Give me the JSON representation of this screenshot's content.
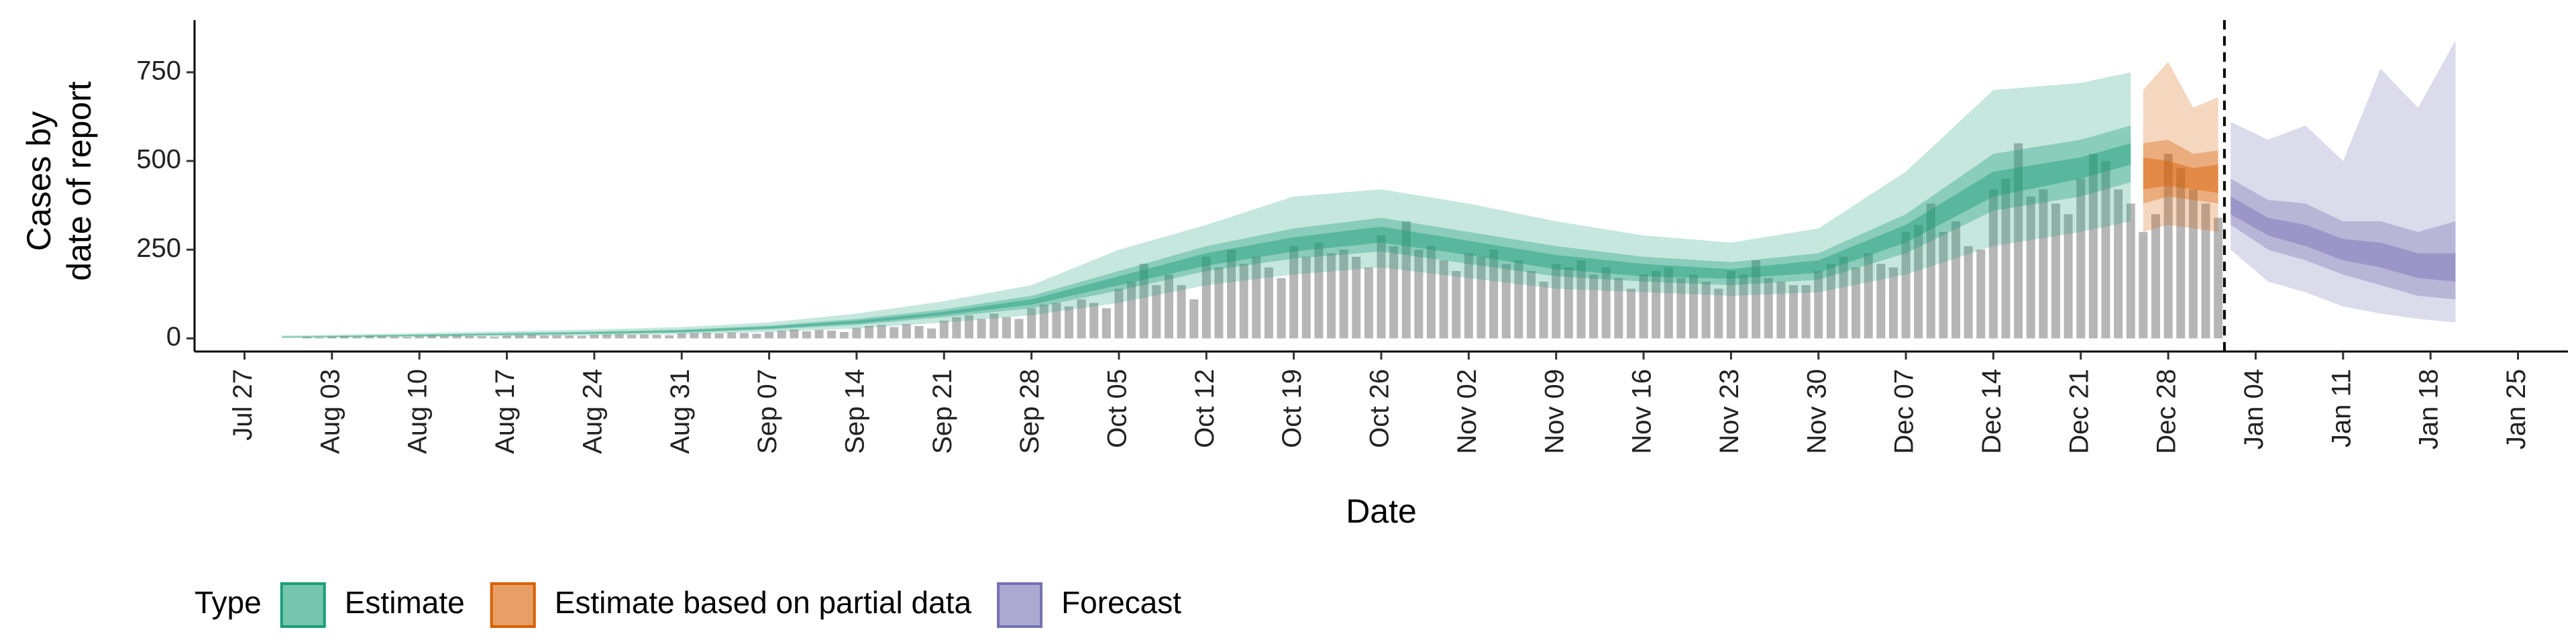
{
  "chart_data": {
    "type": "area",
    "x_label": "Date",
    "y_label": [
      "Cases by",
      "date of report"
    ],
    "legend_title": "Type",
    "xlim": [
      "Jul 23",
      "Jan 29"
    ],
    "xticks": [
      "Jul 27",
      "Aug 03",
      "Aug 10",
      "Aug 17",
      "Aug 24",
      "Aug 31",
      "Sep 07",
      "Sep 14",
      "Sep 21",
      "Sep 28",
      "Oct 05",
      "Oct 12",
      "Oct 19",
      "Oct 26",
      "Nov 02",
      "Nov 09",
      "Nov 16",
      "Nov 23",
      "Nov 30",
      "Dec 07",
      "Dec 14",
      "Dec 21",
      "Dec 28",
      "Jan 04",
      "Jan 11",
      "Jan 18",
      "Jan 25"
    ],
    "ylim": [
      -37,
      897
    ],
    "yticks": [
      0,
      250,
      500,
      750
    ],
    "bars": {
      "color": "#9e9e9e",
      "x": [
        "Aug 01",
        "Aug 02",
        "Aug 03",
        "Aug 04",
        "Aug 05",
        "Aug 06",
        "Aug 07",
        "Aug 08",
        "Aug 09",
        "Aug 10",
        "Aug 11",
        "Aug 12",
        "Aug 13",
        "Aug 14",
        "Aug 15",
        "Aug 16",
        "Aug 17",
        "Aug 18",
        "Aug 19",
        "Aug 20",
        "Aug 21",
        "Aug 22",
        "Aug 23",
        "Aug 24",
        "Aug 25",
        "Aug 26",
        "Aug 27",
        "Aug 28",
        "Aug 29",
        "Aug 30",
        "Aug 31",
        "Sep 01",
        "Sep 02",
        "Sep 03",
        "Sep 04",
        "Sep 05",
        "Sep 06",
        "Sep 07",
        "Sep 08",
        "Sep 09",
        "Sep 10",
        "Sep 11",
        "Sep 12",
        "Sep 13",
        "Sep 14",
        "Sep 15",
        "Sep 16",
        "Sep 17",
        "Sep 18",
        "Sep 19",
        "Sep 20",
        "Sep 21",
        "Sep 22",
        "Sep 23",
        "Sep 24",
        "Sep 25",
        "Sep 26",
        "Sep 27",
        "Sep 28",
        "Sep 29",
        "Sep 30",
        "Oct 01",
        "Oct 02",
        "Oct 03",
        "Oct 04",
        "Oct 05",
        "Oct 06",
        "Oct 07",
        "Oct 08",
        "Oct 09",
        "Oct 10",
        "Oct 11",
        "Oct 12",
        "Oct 13",
        "Oct 14",
        "Oct 15",
        "Oct 16",
        "Oct 17",
        "Oct 18",
        "Oct 19",
        "Oct 20",
        "Oct 21",
        "Oct 22",
        "Oct 23",
        "Oct 24",
        "Oct 25",
        "Oct 26",
        "Oct 27",
        "Oct 28",
        "Oct 29",
        "Oct 30",
        "Oct 31",
        "Nov 01",
        "Nov 02",
        "Nov 03",
        "Nov 04",
        "Nov 05",
        "Nov 06",
        "Nov 07",
        "Nov 08",
        "Nov 09",
        "Nov 10",
        "Nov 11",
        "Nov 12",
        "Nov 13",
        "Nov 14",
        "Nov 15",
        "Nov 16",
        "Nov 17",
        "Nov 18",
        "Nov 19",
        "Nov 20",
        "Nov 21",
        "Nov 22",
        "Nov 23",
        "Nov 24",
        "Nov 25",
        "Nov 26",
        "Nov 27",
        "Nov 28",
        "Nov 29",
        "Nov 30",
        "Dec 01",
        "Dec 02",
        "Dec 03",
        "Dec 04",
        "Dec 05",
        "Dec 06",
        "Dec 07",
        "Dec 08",
        "Dec 09",
        "Dec 10",
        "Dec 11",
        "Dec 12",
        "Dec 13",
        "Dec 14",
        "Dec 15",
        "Dec 16",
        "Dec 17",
        "Dec 18",
        "Dec 19",
        "Dec 20",
        "Dec 21",
        "Dec 22",
        "Dec 23",
        "Dec 24",
        "Dec 25",
        "Dec 26",
        "Dec 27",
        "Dec 28",
        "Dec 29",
        "Dec 30",
        "Dec 31",
        "Jan 01"
      ],
      "values": [
        4,
        3,
        5,
        6,
        5,
        7,
        6,
        5,
        4,
        6,
        8,
        7,
        9,
        7,
        6,
        5,
        8,
        9,
        10,
        8,
        9,
        8,
        7,
        10,
        11,
        12,
        10,
        11,
        10,
        9,
        14,
        15,
        16,
        14,
        17,
        15,
        13,
        18,
        22,
        25,
        20,
        24,
        22,
        18,
        30,
        35,
        38,
        32,
        40,
        35,
        28,
        50,
        60,
        65,
        55,
        70,
        60,
        55,
        85,
        95,
        100,
        90,
        110,
        100,
        85,
        140,
        160,
        210,
        150,
        180,
        150,
        110,
        230,
        200,
        250,
        210,
        230,
        200,
        170,
        260,
        230,
        270,
        240,
        250,
        230,
        200,
        290,
        260,
        330,
        250,
        260,
        220,
        190,
        240,
        230,
        250,
        210,
        220,
        190,
        160,
        210,
        200,
        220,
        180,
        200,
        170,
        140,
        180,
        190,
        200,
        170,
        180,
        160,
        140,
        190,
        180,
        220,
        170,
        160,
        150,
        150,
        190,
        210,
        230,
        200,
        240,
        210,
        200,
        300,
        320,
        380,
        300,
        330,
        260,
        250,
        420,
        450,
        550,
        400,
        420,
        380,
        350,
        450,
        520,
        500,
        420,
        380,
        300,
        350,
        520,
        480,
        420,
        380,
        340
      ]
    },
    "series": [
      {
        "name": "Estimate",
        "color": "#1b9e77",
        "x": [
          "Jul 30",
          "Aug 03",
          "Aug 10",
          "Aug 17",
          "Aug 24",
          "Aug 31",
          "Sep 07",
          "Sep 14",
          "Sep 21",
          "Sep 28",
          "Oct 05",
          "Oct 12",
          "Oct 19",
          "Oct 26",
          "Nov 02",
          "Nov 09",
          "Nov 16",
          "Nov 23",
          "Nov 30",
          "Dec 07",
          "Dec 14",
          "Dec 21",
          "Dec 25"
        ],
        "upper_90": [
          8,
          10,
          15,
          20,
          25,
          32,
          45,
          70,
          105,
          150,
          250,
          320,
          400,
          420,
          380,
          330,
          290,
          270,
          310,
          470,
          700,
          720,
          750
        ],
        "lower_90": [
          1,
          2,
          4,
          6,
          8,
          12,
          18,
          28,
          45,
          65,
          100,
          150,
          180,
          200,
          170,
          140,
          130,
          120,
          130,
          180,
          260,
          300,
          330
        ],
        "upper_50": [
          5,
          7,
          11,
          15,
          19,
          25,
          36,
          55,
          82,
          120,
          190,
          260,
          310,
          340,
          300,
          260,
          230,
          215,
          240,
          350,
          520,
          560,
          600
        ],
        "lower_50": [
          2,
          4,
          6,
          9,
          12,
          16,
          25,
          38,
          60,
          85,
          135,
          190,
          225,
          245,
          210,
          175,
          160,
          150,
          165,
          240,
          360,
          400,
          440
        ],
        "upper_20": [
          4,
          6,
          9,
          13,
          17,
          22,
          33,
          50,
          75,
          110,
          175,
          240,
          285,
          315,
          275,
          235,
          210,
          195,
          220,
          320,
          470,
          510,
          550
        ],
        "lower_20": [
          3,
          5,
          7,
          11,
          14,
          18,
          28,
          42,
          66,
          95,
          150,
          205,
          245,
          270,
          235,
          195,
          175,
          168,
          185,
          270,
          400,
          450,
          490
        ]
      },
      {
        "name": "Estimate based on partial data",
        "color": "#d95f02",
        "x": [
          "Dec 26",
          "Dec 28",
          "Dec 30",
          "Jan 01"
        ],
        "upper_90": [
          700,
          780,
          650,
          680
        ],
        "lower_90": [
          300,
          320,
          310,
          300
        ],
        "upper_50": [
          550,
          560,
          520,
          530
        ],
        "lower_50": [
          380,
          400,
          390,
          380
        ],
        "upper_20": [
          510,
          500,
          480,
          490
        ],
        "lower_20": [
          420,
          430,
          420,
          410
        ]
      },
      {
        "name": "Forecast",
        "color": "#7570b3",
        "x": [
          "Jan 02",
          "Jan 05",
          "Jan 08",
          "Jan 11",
          "Jan 14",
          "Jan 17",
          "Jan 20"
        ],
        "upper_90": [
          610,
          560,
          600,
          500,
          760,
          650,
          840
        ],
        "lower_90": [
          250,
          160,
          130,
          90,
          70,
          55,
          45
        ],
        "upper_50": [
          450,
          390,
          380,
          330,
          330,
          300,
          330
        ],
        "lower_50": [
          320,
          250,
          220,
          180,
          150,
          120,
          110
        ],
        "upper_20": [
          400,
          340,
          320,
          280,
          270,
          240,
          240
        ],
        "lower_20": [
          350,
          290,
          260,
          220,
          200,
          170,
          160
        ]
      }
    ]
  }
}
